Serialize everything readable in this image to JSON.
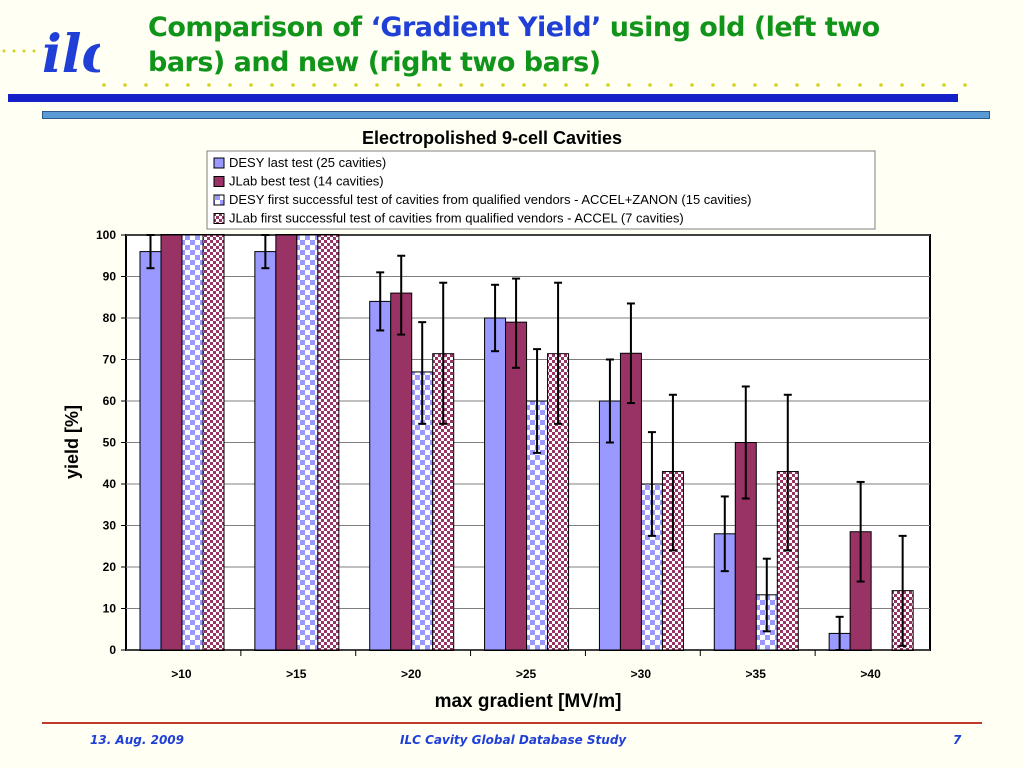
{
  "slide": {
    "title_pre": "Comparison of ",
    "title_hl": "‘Gradient Yield’",
    "title_post": " using old (left two bars) and new (right two bars)",
    "logo_text": "ilc",
    "colors": {
      "title": "#11941a",
      "highlight": "#1f3fd6",
      "rule": "#1520c8",
      "footer_line": "#c0392b"
    }
  },
  "footer": {
    "date": "13. Aug.  2009",
    "center": "ILC Cavity Global Database Study",
    "page": "7"
  },
  "chart_data": {
    "type": "bar",
    "title": "Electropolished 9-cell Cavities",
    "xlabel": "max gradient [MV/m]",
    "ylabel": "yield [%]",
    "ylim": [
      0,
      100
    ],
    "yticks": [
      0,
      10,
      20,
      30,
      40,
      50,
      60,
      70,
      80,
      90,
      100
    ],
    "grid": true,
    "legend_position": "top",
    "categories": [
      ">10",
      ">15",
      ">20",
      ">25",
      ">30",
      ">35",
      ">40"
    ],
    "series": [
      {
        "name": "DESY last test (25 cavities)",
        "color": "#9999ff",
        "pattern": "solid",
        "values": [
          96,
          96,
          84,
          80,
          60,
          28,
          4
        ],
        "err_low": [
          92,
          92,
          77,
          72,
          50,
          19,
          0
        ],
        "err_high": [
          100,
          100,
          91,
          88,
          70,
          37,
          8
        ]
      },
      {
        "name": "JLab best test (14 cavities)",
        "color": "#993366",
        "pattern": "solid",
        "values": [
          100,
          100,
          86,
          79,
          71.5,
          50,
          28.5
        ],
        "err_low": [
          100,
          100,
          76,
          68,
          59.5,
          36.5,
          16.5
        ],
        "err_high": [
          100,
          100,
          95,
          89.5,
          83.5,
          63.5,
          40.5
        ]
      },
      {
        "name": "DESY first successful test of cavities from qualified vendors - ACCEL+ZANON (15 cavities)",
        "color": "#9999ff",
        "pattern": "checker",
        "values": [
          100,
          100,
          67,
          60,
          40,
          13.3,
          0
        ],
        "err_low": [
          100,
          100,
          54.5,
          47.5,
          27.5,
          4.5,
          0
        ],
        "err_high": [
          100,
          100,
          79,
          72.5,
          52.5,
          22,
          0
        ]
      },
      {
        "name": "JLab first successful test of cavities from qualified vendors - ACCEL (7 cavities)",
        "color": "#993366",
        "pattern": "checker",
        "values": [
          100,
          100,
          71.4,
          71.4,
          43,
          43,
          14.3
        ],
        "err_low": [
          100,
          100,
          54.5,
          54.5,
          24,
          24,
          1
        ],
        "err_high": [
          100,
          100,
          88.5,
          88.5,
          61.5,
          61.5,
          27.5
        ]
      }
    ]
  }
}
